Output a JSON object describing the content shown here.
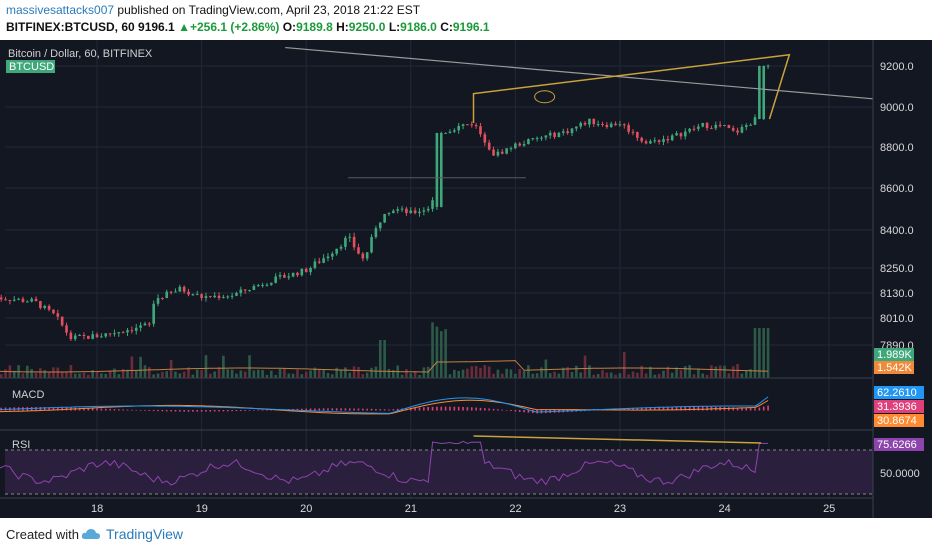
{
  "header": {
    "author": "massivesattacks007",
    "published": "published on TradingView.com, April 23, 2018 21:22 EST",
    "symbol": "BITFINEX:BTCUSD, 60",
    "last": "9196.1",
    "change": "+256.1 (+2.86%)",
    "o_label": "O:",
    "o_value": "9189.8",
    "h_label": "H:",
    "h_value": "9250.0",
    "l_label": "L:",
    "l_value": "9186.0",
    "c_label": "C:",
    "c_value": "9196.1"
  },
  "footer": {
    "created_with": "Created with",
    "brand": "TradingView"
  },
  "colors": {
    "background": "#131722",
    "up": "#3fa87a",
    "down": "#e0505e",
    "trendline": "#c9a23a",
    "long_trendline": "#9a9a9a",
    "macd": "#2196f3",
    "signal": "#ff8a30",
    "histogram": "#e0407a",
    "rsi": "#8e44ad"
  },
  "chart_data": [
    {
      "type": "candlestick",
      "title": "Bitcoin / Dollar, 60, BITFINEX",
      "symbol_badge": "BTCUSD",
      "x_ticks": [
        "18",
        "19",
        "20",
        "21",
        "22",
        "23",
        "24",
        "25"
      ],
      "y_ticks": [
        "9200.0",
        "9000.0",
        "8800.0",
        "8600.0",
        "8400.0",
        "8250.0",
        "8130.0",
        "8010.0",
        "7890.0"
      ],
      "y_tick_values": [
        9200,
        9000,
        8800,
        8600,
        8400,
        8250,
        8130,
        8010,
        7890
      ],
      "price_anchors": [
        {
          "day": 17.0,
          "price": 8110
        },
        {
          "day": 17.4,
          "price": 8090
        },
        {
          "day": 17.6,
          "price": 8020
        },
        {
          "day": 17.75,
          "price": 7920
        },
        {
          "day": 18.0,
          "price": 7930
        },
        {
          "day": 18.3,
          "price": 7960
        },
        {
          "day": 18.5,
          "price": 7980
        },
        {
          "day": 18.55,
          "price": 8100
        },
        {
          "day": 18.8,
          "price": 8150
        },
        {
          "day": 19.0,
          "price": 8110
        },
        {
          "day": 19.3,
          "price": 8120
        },
        {
          "day": 19.6,
          "price": 8180
        },
        {
          "day": 20.0,
          "price": 8240
        },
        {
          "day": 20.2,
          "price": 8300
        },
        {
          "day": 20.4,
          "price": 8370
        },
        {
          "day": 20.55,
          "price": 8280
        },
        {
          "day": 20.75,
          "price": 8490
        },
        {
          "day": 20.85,
          "price": 8500
        },
        {
          "day": 21.0,
          "price": 8480
        },
        {
          "day": 21.2,
          "price": 8510
        },
        {
          "day": 21.28,
          "price": 8870
        },
        {
          "day": 21.5,
          "price": 8910
        },
        {
          "day": 21.6,
          "price": 8920
        },
        {
          "day": 21.8,
          "price": 8760
        },
        {
          "day": 22.0,
          "price": 8810
        },
        {
          "day": 22.2,
          "price": 8840
        },
        {
          "day": 22.5,
          "price": 8880
        },
        {
          "day": 22.7,
          "price": 8930
        },
        {
          "day": 22.9,
          "price": 8910
        },
        {
          "day": 23.0,
          "price": 8920
        },
        {
          "day": 23.25,
          "price": 8820
        },
        {
          "day": 23.5,
          "price": 8850
        },
        {
          "day": 23.8,
          "price": 8910
        },
        {
          "day": 24.0,
          "price": 8900
        },
        {
          "day": 24.1,
          "price": 8870
        },
        {
          "day": 24.3,
          "price": 8940
        },
        {
          "day": 24.35,
          "price": 9200
        },
        {
          "day": 24.45,
          "price": 9196
        }
      ],
      "volume_labels": [
        "1.989K",
        "1.542K"
      ],
      "annotations": "Rising wedge trendlines near 9000-9200 and a long descending trendline from 9280 toward 9040"
    },
    {
      "type": "line",
      "title": "MACD",
      "series": [
        {
          "name": "MACD",
          "last_value": "62.2610"
        },
        {
          "name": "Signal",
          "last_value": "30.8674"
        },
        {
          "name": "Histogram",
          "last_value": "31.3936"
        }
      ]
    },
    {
      "type": "line",
      "title": "RSI",
      "last_value": "75.6266",
      "y_ticks": [
        "50.0000"
      ],
      "levels": [
        70,
        30
      ]
    }
  ]
}
